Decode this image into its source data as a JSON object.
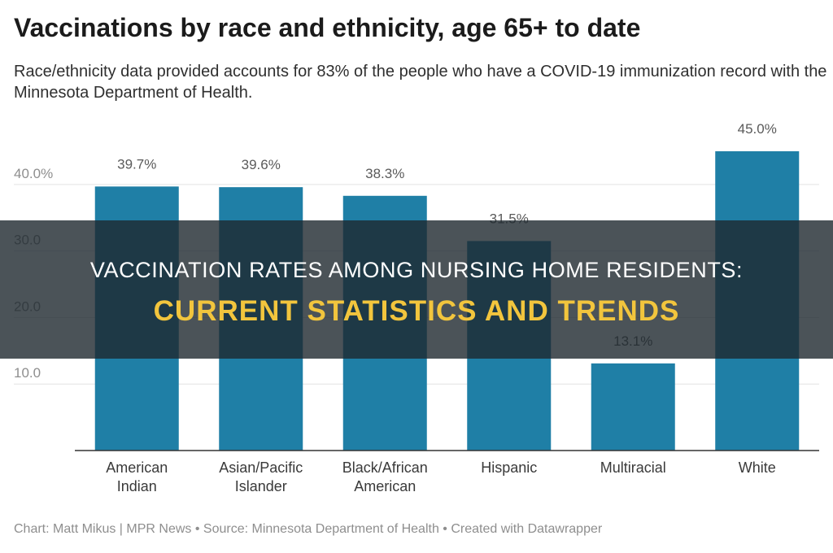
{
  "chart_data": {
    "type": "bar",
    "title": "Vaccinations by race and ethnicity, age 65+ to date",
    "subtitle": "Race/ethnicity data provided accounts for 83% of the people who have a COVID-19 immunization record with the Minnesota Department of Health.",
    "categories": [
      [
        "American",
        "Indian"
      ],
      [
        "Asian/Pacific",
        "Islander"
      ],
      [
        "Black/African",
        "American"
      ],
      [
        "Hispanic"
      ],
      [
        "Multiracial"
      ],
      [
        "White"
      ]
    ],
    "values": [
      39.7,
      39.6,
      38.3,
      31.5,
      13.1,
      45.0
    ],
    "value_labels": [
      "39.7%",
      "39.6%",
      "38.3%",
      "31.5%",
      "13.1%",
      "45.0%"
    ],
    "yticks": [
      10,
      20,
      30,
      40
    ],
    "ytick_labels": [
      "10.0",
      "20.0",
      "30.0",
      "40.0%"
    ],
    "ylim": [
      0,
      45
    ],
    "grid": true,
    "bar_color": "#1f7fa6",
    "footer": "Chart: Matt Mikus | MPR News • Source: Minnesota Department of Health • Created with Datawrapper"
  },
  "banner": {
    "line1": "Vaccination Rates Among Nursing Home Residents:",
    "line2": "Current Statistics And Trends",
    "line1_color": "#ffffff",
    "line2_color": "#f2c53d"
  }
}
